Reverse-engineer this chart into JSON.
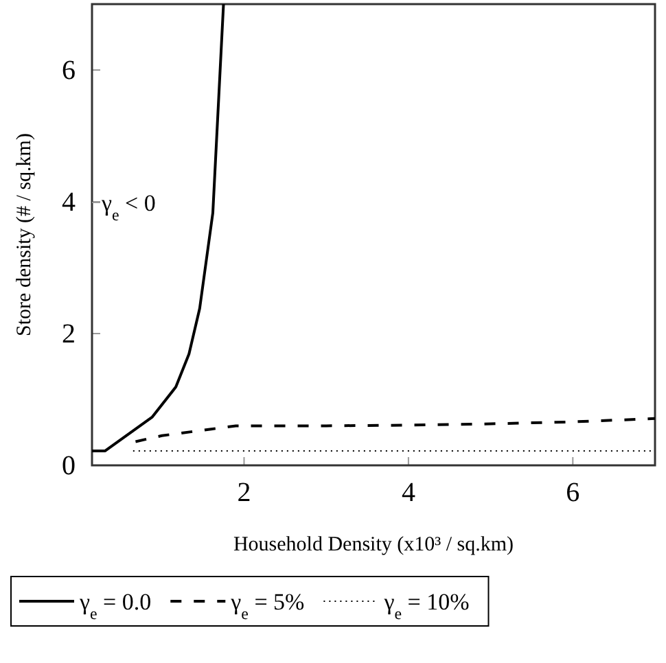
{
  "chart_data": {
    "type": "line",
    "xlabel": "Household Density (x10³ / sq.km)",
    "ylabel": "Store density (# / sq.km)",
    "xlim": [
      0.15,
      7
    ],
    "ylim": [
      0,
      7
    ],
    "xticks": [
      2,
      4,
      6
    ],
    "yticks": [
      0,
      2,
      4,
      6
    ],
    "grid": false,
    "legend": "bottom",
    "marker": "none",
    "annotations": [
      "γ$_{e}$ < 0"
    ],
    "series": [
      {
        "name": "γ$_{e}$ = 0.0",
        "color": "#000000",
        "line_style": "solid",
        "x": [
          0.15,
          0.31,
          0.88,
          1.17,
          1.33,
          1.46,
          1.62,
          1.75
        ],
        "values": [
          0.22,
          0.22,
          0.73,
          1.19,
          1.69,
          2.38,
          3.83,
          7.0
        ]
      },
      {
        "name": "γ$_{e}$ = 5%",
        "color": "#000000",
        "line_style": "dashed",
        "x": [
          0.68,
          1.0,
          1.6,
          1.9,
          3,
          4,
          5,
          6,
          7
        ],
        "values": [
          0.36,
          0.45,
          0.55,
          0.6,
          0.6,
          0.61,
          0.63,
          0.66,
          0.71
        ]
      },
      {
        "name": "γ$_{e}$ = 10%",
        "color": "#000000",
        "line_style": "dotted",
        "x": [
          0.65,
          7
        ],
        "values": [
          0.22,
          0.22
        ]
      }
    ]
  }
}
